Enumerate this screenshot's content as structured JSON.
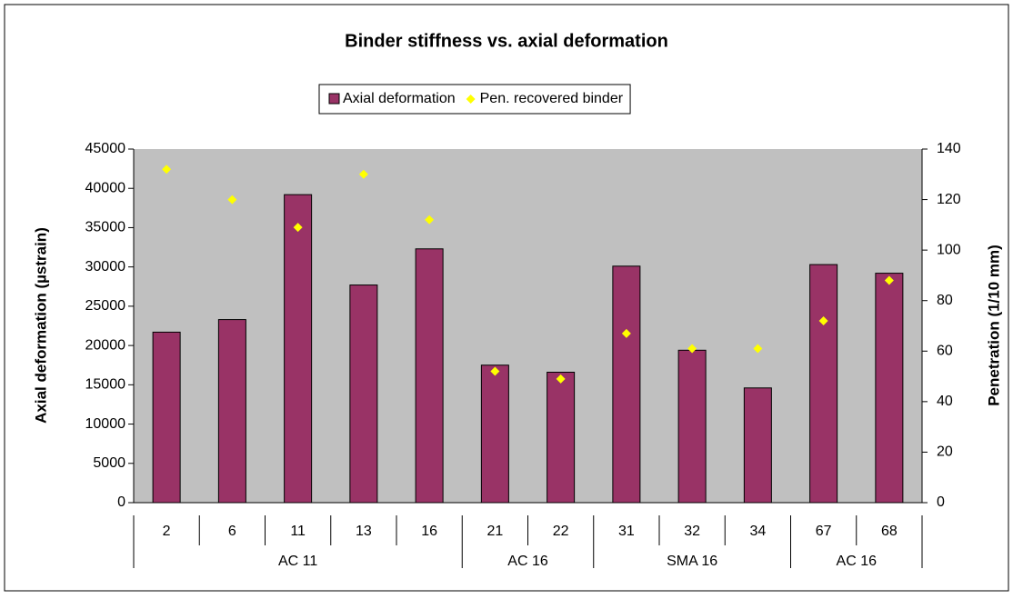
{
  "chart_data": {
    "type": "bar_scatter",
    "title": "Binder stiffness vs. axial deformation",
    "y_label": "Axial deformation (µstrain)",
    "y2_label": "Penetration (1/10 mm)",
    "groups": [
      {
        "name": "AC 11",
        "categories": [
          "2",
          "6",
          "11",
          "13",
          "16"
        ]
      },
      {
        "name": "AC 16",
        "categories": [
          "21",
          "22"
        ]
      },
      {
        "name": "SMA 16",
        "categories": [
          "31",
          "32",
          "34"
        ]
      },
      {
        "name": "AC 16",
        "categories": [
          "67",
          "68"
        ]
      }
    ],
    "series": [
      {
        "name": "Axial deformation",
        "type": "bar",
        "color": "#993366",
        "values": [
          21700,
          23300,
          39200,
          27700,
          32300,
          17500,
          16600,
          30100,
          19400,
          14600,
          30300,
          29200
        ]
      },
      {
        "name": "Pen. recovered binder",
        "type": "scatter",
        "axis": "y2",
        "color": "#ffff00",
        "values": [
          132,
          120,
          109,
          130,
          112,
          52,
          49,
          67,
          61,
          61,
          72,
          88
        ]
      }
    ],
    "ylim": [
      0,
      45000
    ],
    "yticks": [
      0,
      5000,
      10000,
      15000,
      20000,
      25000,
      30000,
      35000,
      40000,
      45000
    ],
    "y2lim": [
      0,
      140
    ],
    "y2ticks": [
      0,
      20,
      40,
      60,
      80,
      100,
      120,
      140
    ],
    "plot_background": "#c0c0c0"
  }
}
